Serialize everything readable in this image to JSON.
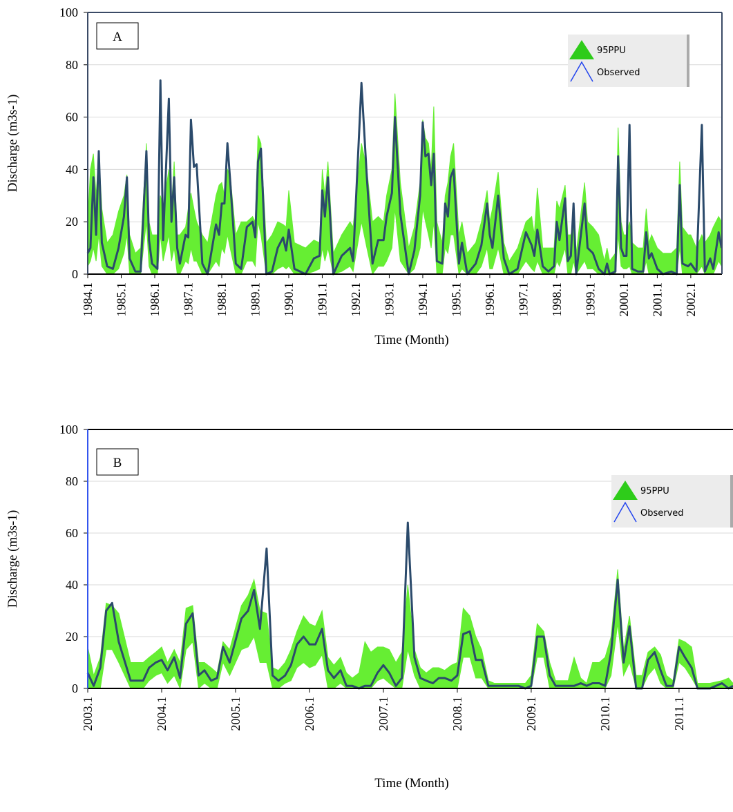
{
  "chart_data": [
    {
      "type": "line",
      "panel_label": "A",
      "ylabel": "Discharge (m3s-1)",
      "xlabel": "Time (Month)",
      "ylim": [
        0,
        100
      ],
      "yticks": [
        0,
        20,
        40,
        60,
        80,
        100
      ],
      "grid": true,
      "legend_position": "upper right",
      "xlim": [
        1984,
        2002.93
      ],
      "xticks": [
        {
          "value": 1984,
          "label": "1984.1"
        },
        {
          "value": 1985,
          "label": "1985.1"
        },
        {
          "value": 1986,
          "label": "1986.1"
        },
        {
          "value": 1987,
          "label": "1987.1"
        },
        {
          "value": 1988,
          "label": "1988.1"
        },
        {
          "value": 1989,
          "label": "1989.1"
        },
        {
          "value": 1990,
          "label": "1990.1"
        },
        {
          "value": 1991,
          "label": "1991.1"
        },
        {
          "value": 1992,
          "label": "1992.1"
        },
        {
          "value": 1993,
          "label": "1993.1"
        },
        {
          "value": 1994,
          "label": "1994.1"
        },
        {
          "value": 1995,
          "label": "1995.1"
        },
        {
          "value": 1996,
          "label": "1996.1"
        },
        {
          "value": 1997,
          "label": "1997.1"
        },
        {
          "value": 1998,
          "label": "1998.1"
        },
        {
          "value": 1999,
          "label": "1999.1"
        },
        {
          "value": 2000,
          "label": "2000.1"
        },
        {
          "value": 2001,
          "label": "2001.1"
        },
        {
          "value": 2002,
          "label": "2002.1"
        }
      ],
      "x": [
        1984.0,
        1984.08,
        1984.17,
        1984.25,
        1984.33,
        1984.42,
        1984.58,
        1984.75,
        1984.92,
        1985.08,
        1985.17,
        1985.25,
        1985.42,
        1985.58,
        1985.75,
        1985.83,
        1985.92,
        1986.08,
        1986.17,
        1986.25,
        1986.42,
        1986.5,
        1986.58,
        1986.67,
        1986.75,
        1986.92,
        1987.0,
        1987.08,
        1987.17,
        1987.25,
        1987.42,
        1987.58,
        1987.83,
        1987.92,
        1988.0,
        1988.08,
        1988.17,
        1988.25,
        1988.42,
        1988.58,
        1988.75,
        1988.92,
        1989.0,
        1989.08,
        1989.17,
        1989.33,
        1989.5,
        1989.67,
        1989.83,
        1989.92,
        1990.0,
        1990.17,
        1990.5,
        1990.75,
        1990.92,
        1991.0,
        1991.08,
        1991.17,
        1991.33,
        1991.58,
        1991.83,
        1991.92,
        1992.17,
        1992.33,
        1992.5,
        1992.67,
        1992.83,
        1992.92,
        1993.08,
        1993.17,
        1993.33,
        1993.58,
        1993.75,
        1993.92,
        1994.0,
        1994.08,
        1994.17,
        1994.25,
        1994.33,
        1994.42,
        1994.58,
        1994.67,
        1994.75,
        1994.83,
        1994.92,
        1995.08,
        1995.17,
        1995.33,
        1995.58,
        1995.75,
        1995.92,
        1996.0,
        1996.08,
        1996.25,
        1996.42,
        1996.58,
        1996.83,
        1997.08,
        1997.25,
        1997.33,
        1997.42,
        1997.58,
        1997.75,
        1997.92,
        1998.0,
        1998.08,
        1998.25,
        1998.33,
        1998.42,
        1998.5,
        1998.58,
        1998.83,
        1998.92,
        1999.08,
        1999.25,
        1999.42,
        1999.5,
        1999.58,
        1999.75,
        1999.83,
        1999.92,
        2000.0,
        2000.08,
        2000.17,
        2000.25,
        2000.42,
        2000.58,
        2000.67,
        2000.75,
        2000.83,
        2001.0,
        2001.17,
        2001.42,
        2001.58,
        2001.67,
        2001.75,
        2001.92,
        2002.0,
        2002.17,
        2002.33,
        2002.42,
        2002.58,
        2002.67,
        2002.83,
        2002.92
      ],
      "series": [
        {
          "name": "95PPU",
          "color": "#66ee33",
          "lower": [
            3,
            5,
            10,
            5,
            15,
            3,
            0,
            0,
            2,
            8,
            15,
            0,
            0,
            0,
            20,
            3,
            0,
            0,
            15,
            5,
            15,
            5,
            10,
            0,
            0,
            5,
            4,
            10,
            5,
            5,
            0,
            0,
            5,
            3,
            10,
            8,
            15,
            10,
            0,
            0,
            5,
            5,
            3,
            20,
            15,
            0,
            0,
            2,
            3,
            2,
            3,
            0,
            0,
            1,
            2,
            10,
            5,
            10,
            0,
            1,
            3,
            1,
            20,
            10,
            0,
            3,
            3,
            5,
            10,
            25,
            5,
            0,
            2,
            10,
            25,
            20,
            15,
            10,
            20,
            0,
            0,
            10,
            8,
            15,
            15,
            0,
            2,
            0,
            0,
            3,
            10,
            2,
            2,
            10,
            0,
            0,
            0,
            5,
            2,
            1,
            5,
            0,
            0,
            0,
            5,
            3,
            10,
            0,
            0,
            5,
            0,
            5,
            2,
            2,
            0,
            0,
            0,
            0,
            0,
            15,
            3,
            2,
            2,
            3,
            0,
            0,
            0,
            5,
            0,
            0,
            0,
            0,
            0,
            0,
            10,
            0,
            0,
            0,
            0,
            3,
            0,
            0,
            0,
            5,
            3
          ],
          "upper": [
            20,
            40,
            46,
            30,
            47,
            25,
            12,
            15,
            24,
            30,
            38,
            15,
            8,
            10,
            50,
            20,
            15,
            15,
            30,
            25,
            40,
            25,
            43,
            15,
            15,
            18,
            25,
            31,
            25,
            20,
            15,
            12,
            30,
            34,
            35,
            30,
            40,
            38,
            15,
            20,
            20,
            22,
            20,
            53,
            50,
            12,
            15,
            20,
            19,
            18,
            32,
            12,
            10,
            13,
            12,
            40,
            30,
            43,
            8,
            15,
            20,
            18,
            50,
            40,
            20,
            22,
            20,
            30,
            40,
            69,
            35,
            10,
            18,
            35,
            59,
            52,
            50,
            40,
            64,
            20,
            12,
            30,
            35,
            45,
            50,
            15,
            20,
            8,
            12,
            20,
            32,
            20,
            25,
            39,
            12,
            5,
            10,
            20,
            22,
            15,
            33,
            10,
            10,
            10,
            28,
            25,
            34,
            15,
            15,
            20,
            8,
            35,
            20,
            18,
            15,
            5,
            10,
            5,
            8,
            56,
            20,
            15,
            15,
            20,
            12,
            10,
            10,
            25,
            12,
            15,
            10,
            8,
            8,
            10,
            43,
            18,
            15,
            15,
            10,
            15,
            12,
            15,
            18,
            22,
            20
          ]
        },
        {
          "name": "Observed",
          "color": "#2b4a6b",
          "values": [
            8,
            10,
            37,
            15,
            47,
            12,
            3,
            2,
            10,
            22,
            37,
            6,
            1,
            1,
            47,
            13,
            4,
            2,
            74,
            13,
            67,
            20,
            37,
            10,
            4,
            15,
            14,
            59,
            41,
            42,
            4,
            0,
            19,
            15,
            27,
            27,
            50,
            36,
            4,
            2,
            18,
            20,
            14,
            43,
            48,
            0,
            1,
            10,
            14,
            9,
            17,
            2,
            0,
            6,
            7,
            32,
            22,
            37,
            0,
            7,
            10,
            5,
            73,
            37,
            4,
            13,
            13,
            22,
            31,
            60,
            23,
            0,
            9,
            30,
            58,
            45,
            46,
            34,
            46,
            5,
            4,
            27,
            22,
            37,
            40,
            4,
            12,
            0,
            4,
            11,
            27,
            15,
            10,
            30,
            6,
            0,
            2,
            16,
            11,
            7,
            17,
            3,
            1,
            3,
            20,
            13,
            29,
            5,
            7,
            27,
            0,
            27,
            10,
            8,
            2,
            0,
            4,
            0,
            1,
            45,
            10,
            7,
            7,
            57,
            2,
            1,
            1,
            16,
            6,
            8,
            2,
            0,
            1,
            0,
            34,
            4,
            3,
            4,
            1,
            57,
            1,
            6,
            2,
            16,
            10
          ]
        }
      ]
    },
    {
      "type": "line",
      "panel_label": "B",
      "ylabel": "Discharge (m3s-1)",
      "xlabel": "Time (Month)",
      "ylim": [
        0,
        100
      ],
      "yticks": [
        0,
        20,
        40,
        60,
        80,
        100
      ],
      "grid": true,
      "legend_position": "upper right",
      "xlim": [
        2003,
        2011.73
      ],
      "xticks": [
        {
          "value": 2003,
          "label": "2003.1"
        },
        {
          "value": 2004,
          "label": "2004.1"
        },
        {
          "value": 2005,
          "label": "2005.1"
        },
        {
          "value": 2006,
          "label": "2006.1"
        },
        {
          "value": 2007,
          "label": "2007.1"
        },
        {
          "value": 2008,
          "label": "2008.1"
        },
        {
          "value": 2009,
          "label": "2009.1"
        },
        {
          "value": 2010,
          "label": "2010.1"
        },
        {
          "value": 2011,
          "label": "2011.1"
        }
      ],
      "x": [
        2003.0,
        2003.08,
        2003.17,
        2003.25,
        2003.33,
        2003.42,
        2003.58,
        2003.75,
        2003.83,
        2003.92,
        2004.0,
        2004.08,
        2004.17,
        2004.25,
        2004.33,
        2004.42,
        2004.5,
        2004.58,
        2004.67,
        2004.75,
        2004.83,
        2004.92,
        2005.08,
        2005.17,
        2005.25,
        2005.33,
        2005.42,
        2005.5,
        2005.58,
        2005.67,
        2005.75,
        2005.83,
        2005.92,
        2006.0,
        2006.08,
        2006.17,
        2006.25,
        2006.33,
        2006.42,
        2006.5,
        2006.58,
        2006.67,
        2006.75,
        2006.83,
        2006.92,
        2007.0,
        2007.08,
        2007.17,
        2007.25,
        2007.33,
        2007.42,
        2007.5,
        2007.58,
        2007.67,
        2007.75,
        2007.83,
        2007.92,
        2008.0,
        2008.08,
        2008.17,
        2008.25,
        2008.33,
        2008.42,
        2008.5,
        2008.67,
        2008.83,
        2008.92,
        2009.0,
        2009.08,
        2009.17,
        2009.25,
        2009.33,
        2009.5,
        2009.58,
        2009.67,
        2009.75,
        2009.83,
        2009.92,
        2010.0,
        2010.08,
        2010.17,
        2010.25,
        2010.33,
        2010.42,
        2010.5,
        2010.58,
        2010.67,
        2010.75,
        2010.83,
        2010.92,
        2011.0,
        2011.08,
        2011.17,
        2011.25,
        2011.42,
        2011.58,
        2011.67,
        2011.73
      ],
      "series": [
        {
          "name": "95PPU",
          "color": "#66ee33",
          "lower": [
            0,
            0,
            0,
            15,
            15,
            10,
            0,
            0,
            3,
            5,
            6,
            2,
            5,
            0,
            15,
            18,
            0,
            2,
            0,
            0,
            10,
            5,
            15,
            16,
            20,
            10,
            10,
            0,
            0,
            2,
            3,
            8,
            10,
            8,
            9,
            13,
            0,
            0,
            2,
            0,
            0,
            0,
            0,
            0,
            3,
            4,
            2,
            0,
            0,
            15,
            5,
            0,
            0,
            0,
            0,
            0,
            0,
            0,
            12,
            12,
            4,
            4,
            0,
            0,
            0,
            0,
            0,
            0,
            12,
            12,
            0,
            0,
            0,
            0,
            0,
            0,
            0,
            0,
            0,
            5,
            25,
            5,
            10,
            0,
            0,
            5,
            8,
            2,
            0,
            0,
            10,
            8,
            4,
            0,
            0,
            0,
            0,
            0
          ],
          "upper": [
            16,
            5,
            12,
            33,
            32,
            29,
            10,
            10,
            12,
            14,
            16,
            10,
            15,
            10,
            31,
            32,
            10,
            10,
            8,
            6,
            18,
            15,
            32,
            36,
            42,
            30,
            29,
            8,
            7,
            10,
            15,
            22,
            28,
            25,
            24,
            30,
            12,
            9,
            12,
            6,
            4,
            6,
            18,
            14,
            16,
            16,
            15,
            10,
            14,
            40,
            15,
            8,
            6,
            8,
            8,
            7,
            9,
            10,
            31,
            28,
            20,
            15,
            3,
            2,
            2,
            2,
            2,
            5,
            25,
            22,
            10,
            3,
            3,
            12,
            4,
            2,
            10,
            10,
            12,
            20,
            46,
            15,
            28,
            5,
            5,
            14,
            16,
            13,
            5,
            3,
            19,
            18,
            16,
            2,
            2,
            3,
            4,
            2
          ]
        },
        {
          "name": "Observed",
          "color": "#2b4a6b",
          "values": [
            6,
            1,
            8,
            30,
            33,
            18,
            3,
            3,
            8,
            10,
            11,
            7,
            12,
            4,
            25,
            29,
            5,
            7,
            3,
            4,
            16,
            10,
            27,
            30,
            38,
            23,
            54,
            5,
            3,
            5,
            9,
            17,
            20,
            17,
            17,
            23,
            7,
            4,
            7,
            1,
            1,
            0,
            1,
            1,
            6,
            9,
            6,
            1,
            4,
            64,
            12,
            4,
            3,
            2,
            4,
            4,
            3,
            5,
            21,
            22,
            11,
            11,
            1,
            1,
            1,
            1,
            0,
            1,
            20,
            20,
            5,
            1,
            1,
            1,
            2,
            1,
            2,
            2,
            1,
            14,
            42,
            10,
            24,
            0,
            0,
            11,
            14,
            7,
            1,
            1,
            16,
            12,
            8,
            0,
            0,
            2,
            0,
            1
          ]
        }
      ]
    }
  ]
}
